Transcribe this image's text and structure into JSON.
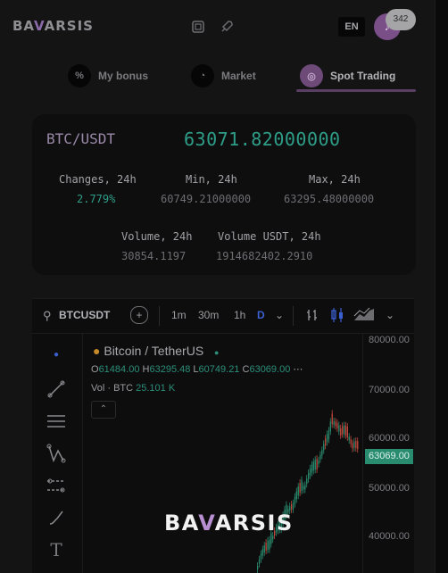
{
  "brand": {
    "logo_left": "BA",
    "logo_v": "V",
    "logo_right": "ARSIS"
  },
  "header": {
    "lang": "EN",
    "avatar_badge": "342",
    "avatar_icon": "bell-icon"
  },
  "tabs": [
    {
      "label": "My bonus",
      "icon": "percent-icon",
      "active": false
    },
    {
      "label": "Market",
      "icon": "pie-chart-icon",
      "active": false
    },
    {
      "label": "Spot Trading",
      "icon": "target-icon",
      "active": true
    }
  ],
  "ticker": {
    "pair": "BTC/USDT",
    "last": "63071.82000000",
    "changes_label": "Changes, 24h",
    "changes_value": "2.779%",
    "min_label": "Min, 24h",
    "min_value": "60749.21000000",
    "max_label": "Max, 24h",
    "max_value": "63295.48000000",
    "volume_label": "Volume, 24h",
    "volume_value": "30854.1197",
    "volume_usdt_label": "Volume USDT, 24h",
    "volume_usdt_value": "1914682402.2910"
  },
  "chart": {
    "symbol": "BTCUSDT",
    "intervals": [
      "1m",
      "30m",
      "1h",
      "D"
    ],
    "active_interval": "D",
    "title": "Bitcoin / TetherUS",
    "ohlc": {
      "o": "61484.00",
      "h": "63295.48",
      "l": "60749.21",
      "c": "63069.00"
    },
    "volume_label": "Vol · BTC",
    "volume_value": "25.101 K",
    "y_ticks": [
      "80000.00",
      "70000.00",
      "60000.00",
      "50000.00",
      "40000.00"
    ],
    "current_price": "63069.00",
    "accent_up": "#2a8c6f",
    "accent_down": "#c0483c"
  }
}
